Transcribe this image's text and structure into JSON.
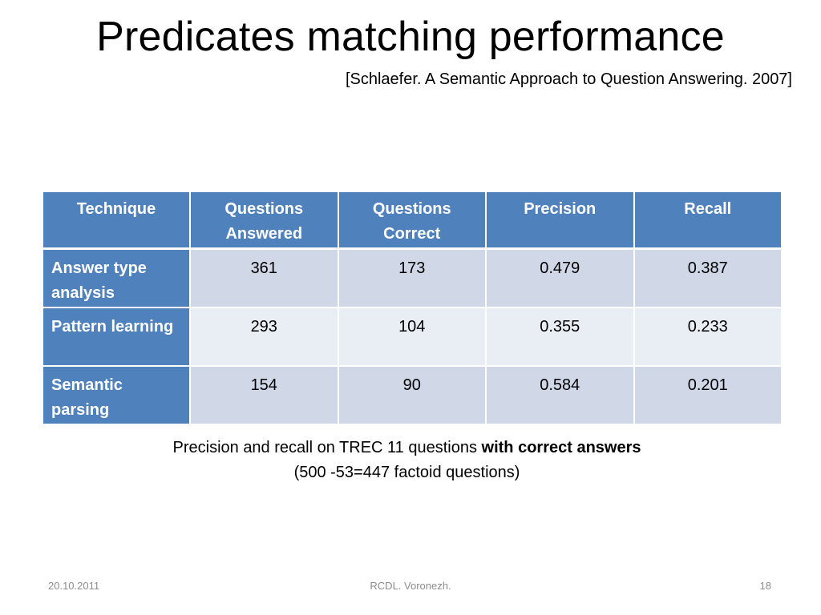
{
  "slide": {
    "title": "Predicates matching performance",
    "citation": "[Schlaefer. A Semantic Approach to Question Answering. 2007]"
  },
  "table": {
    "headers": [
      "Technique",
      "Questions Answered",
      "Questions Correct",
      "Precision",
      "Recall"
    ],
    "rows": [
      {
        "technique": "Answer type analysis",
        "answered": "361",
        "correct": "173",
        "precision": "0.479",
        "recall": "0.387"
      },
      {
        "technique": "Pattern learning",
        "answered": "293",
        "correct": "104",
        "precision": "0.355",
        "recall": "0.233"
      },
      {
        "technique": "Semantic parsing",
        "answered": "154",
        "correct": "90",
        "precision": "0.584",
        "recall": "0.201"
      }
    ]
  },
  "caption": {
    "line1_prefix": "Precision and recall on TREC 11 questions ",
    "line1_bold": "with correct answers",
    "line2": "(500 -53=447 factoid questions)"
  },
  "footer": {
    "date": "20.10.2011",
    "center": "RCDL. Voronezh.",
    "page": "18"
  },
  "colors": {
    "header_blue": "#4f81bd",
    "row_band_dark": "#d0d8e8",
    "row_band_light": "#e9edf4",
    "footer_gray": "#8c8c8c"
  }
}
